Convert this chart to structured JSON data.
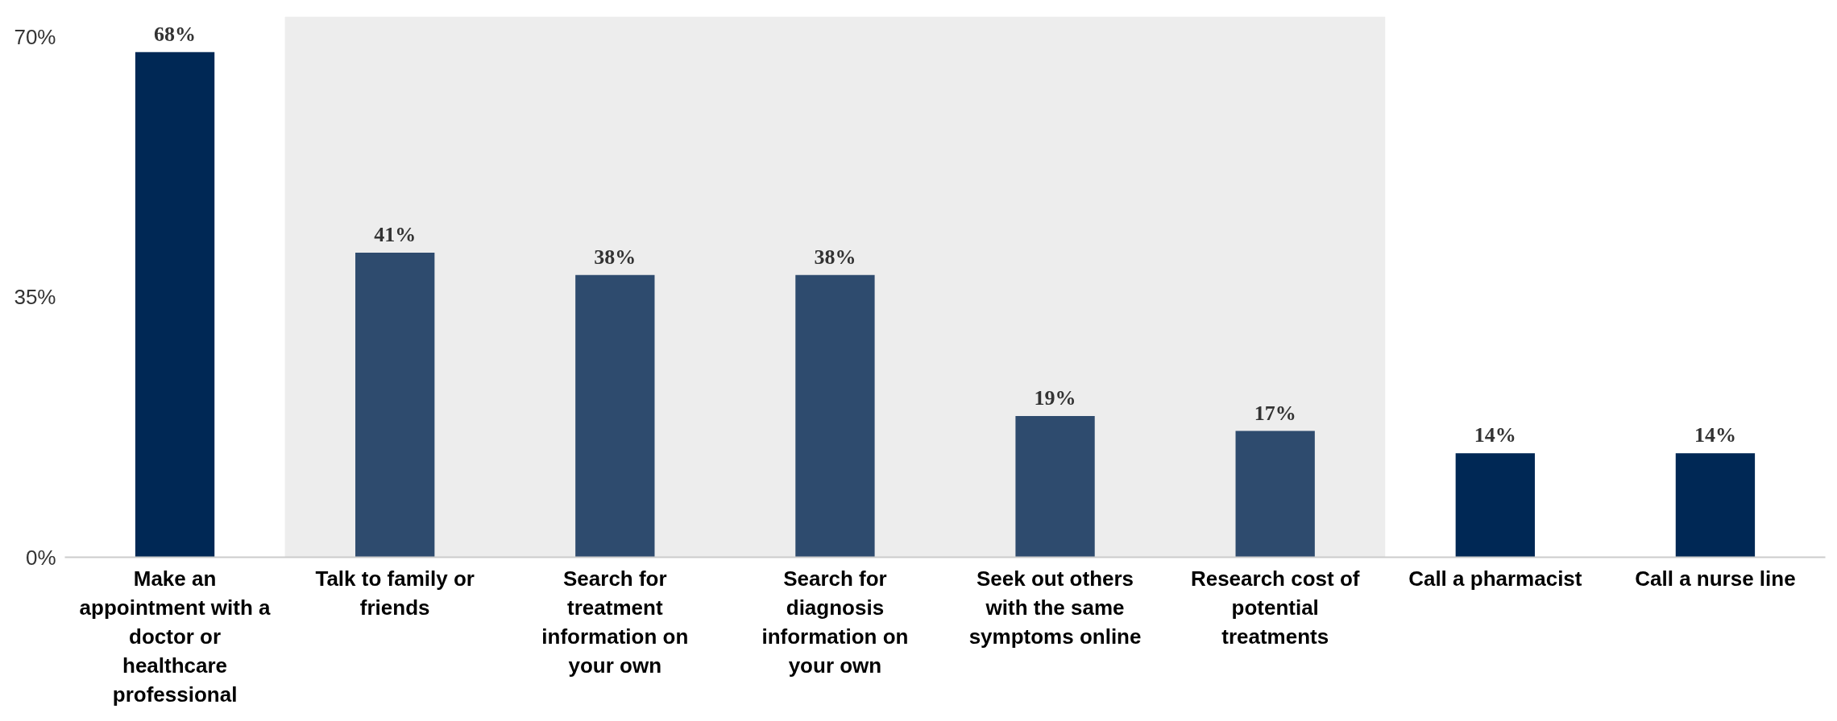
{
  "chart_data": {
    "type": "bar",
    "categories": [
      "Make an appointment with a doctor or healthcare professional",
      "Talk to family or friends",
      "Search for treatment information on your own",
      "Search for diagnosis information on your own",
      "Seek out others with the same symptoms online",
      "Research cost of potential treatments",
      "Call a pharmacist",
      "Call a nurse line"
    ],
    "values": [
      68,
      41,
      38,
      38,
      19,
      17,
      14,
      14
    ],
    "value_labels": [
      "68%",
      "41%",
      "38%",
      "38%",
      "19%",
      "17%",
      "14%",
      "14%"
    ],
    "colors": [
      "#002855",
      "#2e4b6e",
      "#2e4b6e",
      "#2e4b6e",
      "#2e4b6e",
      "#2e4b6e",
      "#002855",
      "#002855"
    ],
    "ylim": [
      0,
      70
    ],
    "yticks": [
      {
        "value": 0,
        "label": "0%"
      },
      {
        "value": 35,
        "label": "35%"
      },
      {
        "value": 70,
        "label": "70%"
      }
    ],
    "bands": [
      {
        "axis": "x",
        "from": "Talk to family or friends",
        "to": "Research cost of potential treatments",
        "color": "#ededed"
      }
    ],
    "grid": false
  }
}
